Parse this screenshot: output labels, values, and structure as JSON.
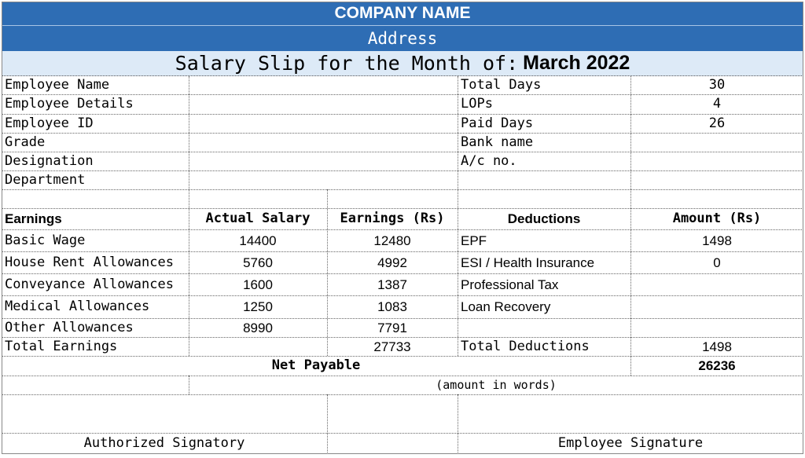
{
  "header": {
    "company": "COMPANY NAME",
    "address": "Address",
    "slip_title": "Salary Slip for the Month of:",
    "month": "March 2022"
  },
  "employee": {
    "labels": [
      "Employee Name",
      "Employee Details",
      "Employee ID",
      "Grade",
      "Designation",
      "Department"
    ],
    "values": [
      "",
      "",
      "",
      "",
      "",
      ""
    ]
  },
  "attendance": {
    "labels": [
      "Total Days",
      "LOPs",
      "Paid Days",
      "Bank name",
      "A/c no."
    ],
    "values": [
      "30",
      "4",
      "26",
      "",
      ""
    ]
  },
  "columns": {
    "earnings": "Earnings",
    "actual": "Actual Salary",
    "earned": "Earnings (Rs)",
    "deductions": "Deductions",
    "amount": "Amount (Rs)"
  },
  "earnings_rows": [
    {
      "label": "Basic Wage",
      "actual": "14400",
      "earned": "12480"
    },
    {
      "label": "House Rent Allowances",
      "actual": "5760",
      "earned": "4992"
    },
    {
      "label": "Conveyance Allowances",
      "actual": "1600",
      "earned": "1387"
    },
    {
      "label": "Medical Allowances",
      "actual": "1250",
      "earned": "1083"
    },
    {
      "label": "Other Allowances",
      "actual": "8990",
      "earned": "7791"
    }
  ],
  "deduction_rows": [
    {
      "label": "EPF",
      "amount": "1498"
    },
    {
      "label": "ESI / Health Insurance",
      "amount": "0"
    },
    {
      "label": "Professional Tax",
      "amount": ""
    },
    {
      "label": "Loan Recovery",
      "amount": ""
    }
  ],
  "totals": {
    "earnings_label": "Total Earnings",
    "earnings_value": "27733",
    "deductions_label": "Total Deductions",
    "deductions_value": "1498",
    "net_label": "Net Payable",
    "net_value": "26236",
    "words_note": "(amount in words)"
  },
  "signatures": {
    "authorized": "Authorized Signatory",
    "employee": "Employee Signature"
  }
}
